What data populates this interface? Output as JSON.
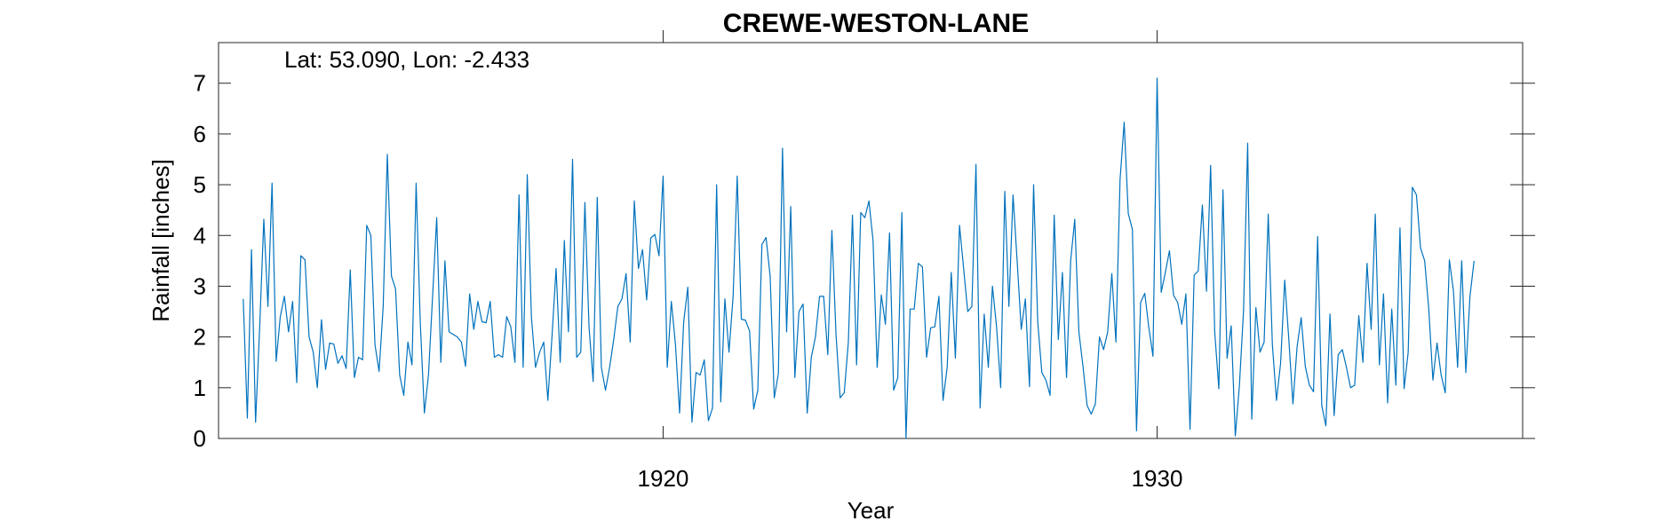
{
  "chart_data": {
    "type": "line",
    "title": "CREWE-WESTON-LANE",
    "xlabel": "Year",
    "ylabel": "Rainfall [inches]",
    "annotation": "Lat: 53.090, Lon: -2.433",
    "xlim": [
      1911,
      1937.4
    ],
    "ylim": [
      0,
      7.8
    ],
    "xticks": [
      1920,
      1930
    ],
    "xtick_labels": [
      "1920",
      "1930"
    ],
    "yticks": [
      0,
      1,
      2,
      3,
      4,
      5,
      6,
      7
    ],
    "ytick_labels": [
      "0",
      "1",
      "2",
      "3",
      "4",
      "5",
      "6",
      "7"
    ],
    "grid": false,
    "x_start": 1911.5,
    "x_step": 0.083333,
    "series": [
      {
        "color": "#0072BD",
        "values": [
          2.75,
          0.4,
          3.72,
          0.32,
          2.2,
          4.32,
          2.6,
          5.03,
          1.52,
          2.4,
          2.8,
          2.1,
          2.7,
          1.1,
          3.6,
          3.52,
          2.0,
          1.7,
          1.0,
          2.34,
          1.36,
          1.88,
          1.86,
          1.48,
          1.63,
          1.38,
          3.32,
          1.2,
          1.6,
          1.55,
          4.2,
          4.0,
          1.85,
          1.32,
          2.6,
          5.6,
          3.2,
          2.95,
          1.25,
          0.85,
          1.9,
          1.45,
          5.03,
          2.3,
          0.5,
          1.25,
          2.8,
          4.35,
          1.5,
          3.5,
          2.1,
          2.05,
          2.0,
          1.9,
          1.42,
          2.85,
          2.15,
          2.7,
          2.3,
          2.28,
          2.7,
          1.6,
          1.65,
          1.6,
          2.4,
          2.2,
          1.5,
          4.8,
          1.4,
          5.2,
          2.4,
          1.4,
          1.7,
          1.9,
          0.75,
          2.0,
          3.35,
          1.5,
          3.9,
          2.1,
          5.5,
          1.6,
          1.7,
          4.65,
          2.2,
          1.12,
          4.75,
          1.4,
          0.95,
          1.4,
          1.95,
          2.6,
          2.75,
          3.25,
          1.9,
          4.68,
          3.35,
          3.72,
          2.73,
          3.95,
          4.02,
          3.6,
          5.17,
          1.4,
          2.7,
          1.85,
          0.5,
          2.3,
          2.98,
          0.32,
          1.3,
          1.25,
          1.55,
          0.35,
          0.6,
          5.0,
          0.72,
          2.75,
          1.7,
          2.8,
          5.17,
          2.35,
          2.33,
          2.12,
          0.58,
          0.95,
          3.82,
          3.96,
          3.2,
          0.8,
          1.28,
          5.72,
          2.1,
          4.57,
          1.2,
          2.5,
          2.65,
          0.5,
          1.6,
          2.0,
          2.8,
          2.8,
          1.65,
          4.1,
          2.05,
          0.8,
          0.9,
          1.9,
          4.4,
          1.45,
          4.45,
          4.35,
          4.68,
          3.9,
          1.4,
          2.83,
          2.25,
          4.05,
          0.95,
          1.2,
          4.45,
          0.0,
          2.55,
          2.55,
          3.45,
          3.38,
          1.6,
          2.18,
          2.2,
          2.8,
          0.75,
          1.4,
          3.27,
          1.58,
          4.2,
          3.35,
          2.5,
          2.6,
          5.4,
          0.6,
          2.45,
          1.4,
          3.0,
          2.2,
          1.0,
          4.87,
          2.6,
          4.8,
          3.5,
          2.15,
          2.75,
          1.02,
          5.0,
          2.3,
          1.3,
          1.15,
          0.85,
          4.4,
          1.95,
          3.27,
          1.2,
          3.5,
          4.32,
          2.1,
          1.42,
          0.65,
          0.48,
          0.68,
          2.0,
          1.75,
          2.1,
          3.25,
          1.9,
          5.1,
          6.23,
          4.43,
          4.12,
          0.15,
          2.68,
          2.86,
          2.18,
          1.62,
          7.1,
          2.88,
          3.27,
          3.7,
          2.82,
          2.68,
          2.25,
          2.85,
          0.18,
          3.22,
          3.3,
          4.6,
          2.9,
          5.38,
          2.1,
          0.98,
          4.9,
          1.58,
          2.22,
          0.05,
          1.05,
          2.52,
          5.82,
          0.38,
          2.58,
          1.7,
          1.9,
          4.42,
          1.85,
          0.75,
          1.48,
          3.12,
          1.95,
          0.68,
          1.8,
          2.38,
          1.42,
          1.05,
          0.92,
          3.98,
          0.65,
          0.25,
          2.45,
          0.45,
          1.65,
          1.75,
          1.4,
          1.0,
          1.05,
          2.42,
          1.5,
          3.45,
          2.15,
          4.42,
          1.45,
          2.85,
          0.7,
          2.55,
          1.05,
          4.15,
          0.98,
          1.7,
          4.95,
          4.8,
          3.75,
          3.5,
          2.55,
          1.15,
          1.88,
          1.25,
          0.9,
          3.52,
          2.9,
          1.4,
          3.5,
          1.3,
          2.8,
          3.5
        ]
      }
    ]
  }
}
